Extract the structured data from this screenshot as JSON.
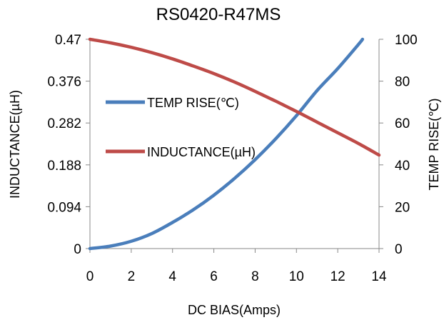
{
  "chart_data": {
    "type": "line",
    "title": "RS0420-R47MS",
    "xlabel": "DC  BIAS(Amps)",
    "ylabel_left": "INDUCTANCE(µH)",
    "ylabel_right": "TEMP RISE(℃)",
    "x_ticks": [
      "0",
      "2",
      "4",
      "6",
      "8",
      "10",
      "12",
      "14"
    ],
    "y_left_ticks": [
      "0",
      "0.094",
      "0.188",
      "0.282",
      "0.376",
      "0.47"
    ],
    "y_right_ticks": [
      "0",
      "20",
      "40",
      "60",
      "80",
      "100"
    ],
    "xlim": [
      0,
      14
    ],
    "ylim_left": [
      0,
      0.47
    ],
    "ylim_right": [
      0,
      100
    ],
    "grid": false,
    "legend_position": "center-left",
    "series": [
      {
        "name": "TEMP RISE(℃)",
        "axis": "right",
        "color": "#4a7ebb",
        "x": [
          0,
          1,
          2,
          3,
          4,
          5,
          6,
          7,
          8,
          9,
          10,
          11,
          12,
          13,
          13.2
        ],
        "y": [
          0,
          1.2,
          3.5,
          7.2,
          12.5,
          18.5,
          25.5,
          33.5,
          42.5,
          52.5,
          63.5,
          75.5,
          86.0,
          97.5,
          100
        ]
      },
      {
        "name": "INDUCTANCE(µH)",
        "axis": "left",
        "color": "#be4b48",
        "x": [
          0,
          1,
          2,
          3,
          4,
          5,
          6,
          7,
          8,
          9,
          10,
          11,
          12,
          13,
          14
        ],
        "y": [
          0.47,
          0.462,
          0.452,
          0.44,
          0.426,
          0.41,
          0.393,
          0.374,
          0.353,
          0.331,
          0.308,
          0.284,
          0.26,
          0.236,
          0.21
        ]
      }
    ]
  }
}
